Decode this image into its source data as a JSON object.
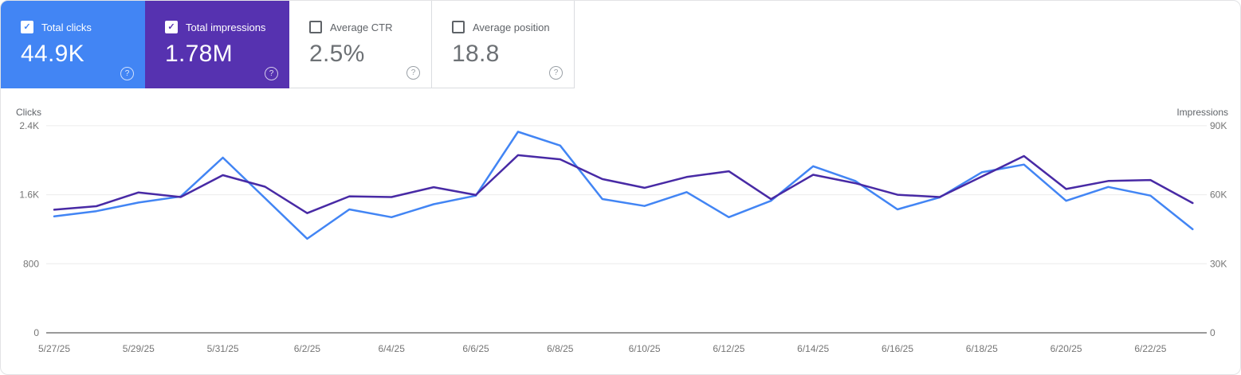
{
  "cards": [
    {
      "label": "Total clicks",
      "value": "44.9K",
      "selected": true,
      "bg": "#4285f4"
    },
    {
      "label": "Total impressions",
      "value": "1.78M",
      "selected": true,
      "bg": "#5632b0"
    },
    {
      "label": "Average CTR",
      "value": "2.5%",
      "selected": false
    },
    {
      "label": "Average position",
      "value": "18.8",
      "selected": false
    }
  ],
  "help_icon_glyph": "?",
  "checkmark_glyph": "✓",
  "colors": {
    "clicks_accent": "#4285f4",
    "impressions_accent": "#5632b0",
    "impressions_line": "#482aa5",
    "gridline": "#ececec",
    "axis_line": "#9a9a9a",
    "tick_text": "#757575",
    "axis_title_text": "#5f6368"
  },
  "chart_data": {
    "type": "line",
    "x": [
      "5/27/25",
      "5/28/25",
      "5/29/25",
      "5/30/25",
      "5/31/25",
      "6/1/25",
      "6/2/25",
      "6/3/25",
      "6/4/25",
      "6/5/25",
      "6/6/25",
      "6/7/25",
      "6/8/25",
      "6/9/25",
      "6/10/25",
      "6/11/25",
      "6/12/25",
      "6/13/25",
      "6/14/25",
      "6/15/25",
      "6/16/25",
      "6/17/25",
      "6/18/25",
      "6/19/25",
      "6/20/25",
      "6/21/25",
      "6/22/25",
      "6/23/25"
    ],
    "x_tick_labels": [
      "5/27/25",
      "5/29/25",
      "5/31/25",
      "6/2/25",
      "6/4/25",
      "6/6/25",
      "6/8/25",
      "6/10/25",
      "6/12/25",
      "6/14/25",
      "6/16/25",
      "6/18/25",
      "6/20/25",
      "6/22/25"
    ],
    "series": [
      {
        "name": "Clicks",
        "axis": "left",
        "color": "#4285f4",
        "values": [
          1350,
          1410,
          1510,
          1580,
          2030,
          1560,
          1090,
          1430,
          1340,
          1490,
          1590,
          2330,
          2170,
          1550,
          1470,
          1630,
          1340,
          1530,
          1930,
          1760,
          1430,
          1570,
          1860,
          1950,
          1530,
          1690,
          1590,
          1200
        ]
      },
      {
        "name": "Impressions",
        "axis": "right",
        "color": "#482aa5",
        "values": [
          53500,
          55000,
          61000,
          59000,
          68500,
          63500,
          52000,
          59300,
          59000,
          63300,
          59900,
          77200,
          75400,
          66800,
          63000,
          67700,
          70200,
          58100,
          68700,
          65000,
          60000,
          59000,
          67900,
          76800,
          62500,
          66000,
          66400,
          56400
        ]
      }
    ],
    "left_axis": {
      "title": "Clicks",
      "ticks": [
        "0",
        "800",
        "1.6K",
        "2.4K"
      ],
      "tick_values": [
        0,
        800,
        1600,
        2400
      ],
      "max": 2400
    },
    "right_axis": {
      "title": "Impressions",
      "ticks": [
        "0",
        "30K",
        "60K",
        "90K"
      ],
      "tick_values": [
        0,
        30000,
        60000,
        90000
      ],
      "max": 90000
    },
    "grid": true,
    "legend_position": "none"
  }
}
